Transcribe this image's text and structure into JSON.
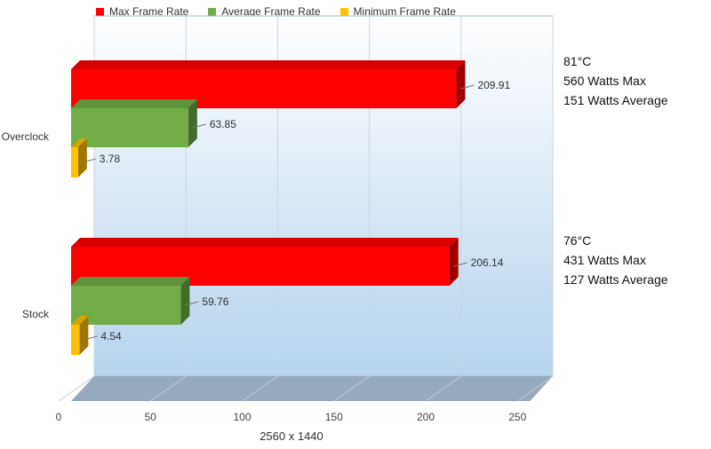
{
  "chart_data": {
    "type": "bar",
    "orientation": "horizontal",
    "categories": [
      "Overclock",
      "Stock"
    ],
    "series": [
      {
        "name": "Max Frame Rate",
        "values": [
          209.91,
          206.14
        ],
        "color": "#ff0000"
      },
      {
        "name": "Average Frame Rate",
        "values": [
          63.85,
          59.76
        ],
        "color": "#70ad47"
      },
      {
        "name": "Minimum Frame Rate",
        "values": [
          3.78,
          4.54
        ],
        "color": "#ffc000"
      }
    ],
    "xlabel": "2560 x 1440",
    "xlim": [
      0,
      250
    ],
    "xticks": [
      "0",
      "50",
      "100",
      "150",
      "200",
      "250"
    ],
    "grid": true,
    "legend_position": "top",
    "annotations": [
      {
        "category": "Overclock",
        "lines": [
          "81°C",
          "560 Watts Max",
          "151 Watts Average"
        ]
      },
      {
        "category": "Stock",
        "lines": [
          "76°C",
          "431 Watts Max",
          "127 Watts Average"
        ]
      }
    ]
  }
}
